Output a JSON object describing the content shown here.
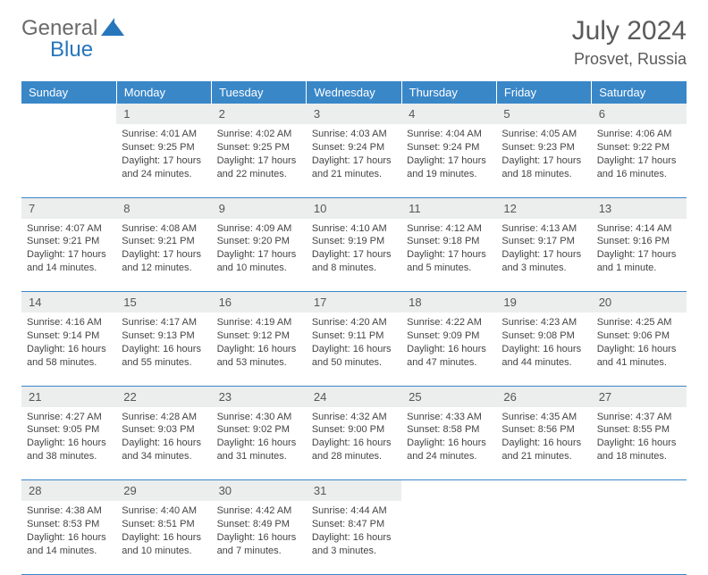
{
  "brand": {
    "name1": "General",
    "name2": "Blue"
  },
  "title": "July 2024",
  "location": "Prosvet, Russia",
  "dayHeaders": [
    "Sunday",
    "Monday",
    "Tuesday",
    "Wednesday",
    "Thursday",
    "Friday",
    "Saturday"
  ],
  "colors": {
    "headerBg": "#3a87c8",
    "headerText": "#ffffff",
    "dayBg": "#eceded",
    "border": "#3a87c8"
  },
  "weeks": [
    [
      null,
      {
        "n": "1",
        "sr": "4:01 AM",
        "ss": "9:25 PM",
        "dl": "17 hours and 24 minutes."
      },
      {
        "n": "2",
        "sr": "4:02 AM",
        "ss": "9:25 PM",
        "dl": "17 hours and 22 minutes."
      },
      {
        "n": "3",
        "sr": "4:03 AM",
        "ss": "9:24 PM",
        "dl": "17 hours and 21 minutes."
      },
      {
        "n": "4",
        "sr": "4:04 AM",
        "ss": "9:24 PM",
        "dl": "17 hours and 19 minutes."
      },
      {
        "n": "5",
        "sr": "4:05 AM",
        "ss": "9:23 PM",
        "dl": "17 hours and 18 minutes."
      },
      {
        "n": "6",
        "sr": "4:06 AM",
        "ss": "9:22 PM",
        "dl": "17 hours and 16 minutes."
      }
    ],
    [
      {
        "n": "7",
        "sr": "4:07 AM",
        "ss": "9:21 PM",
        "dl": "17 hours and 14 minutes."
      },
      {
        "n": "8",
        "sr": "4:08 AM",
        "ss": "9:21 PM",
        "dl": "17 hours and 12 minutes."
      },
      {
        "n": "9",
        "sr": "4:09 AM",
        "ss": "9:20 PM",
        "dl": "17 hours and 10 minutes."
      },
      {
        "n": "10",
        "sr": "4:10 AM",
        "ss": "9:19 PM",
        "dl": "17 hours and 8 minutes."
      },
      {
        "n": "11",
        "sr": "4:12 AM",
        "ss": "9:18 PM",
        "dl": "17 hours and 5 minutes."
      },
      {
        "n": "12",
        "sr": "4:13 AM",
        "ss": "9:17 PM",
        "dl": "17 hours and 3 minutes."
      },
      {
        "n": "13",
        "sr": "4:14 AM",
        "ss": "9:16 PM",
        "dl": "17 hours and 1 minute."
      }
    ],
    [
      {
        "n": "14",
        "sr": "4:16 AM",
        "ss": "9:14 PM",
        "dl": "16 hours and 58 minutes."
      },
      {
        "n": "15",
        "sr": "4:17 AM",
        "ss": "9:13 PM",
        "dl": "16 hours and 55 minutes."
      },
      {
        "n": "16",
        "sr": "4:19 AM",
        "ss": "9:12 PM",
        "dl": "16 hours and 53 minutes."
      },
      {
        "n": "17",
        "sr": "4:20 AM",
        "ss": "9:11 PM",
        "dl": "16 hours and 50 minutes."
      },
      {
        "n": "18",
        "sr": "4:22 AM",
        "ss": "9:09 PM",
        "dl": "16 hours and 47 minutes."
      },
      {
        "n": "19",
        "sr": "4:23 AM",
        "ss": "9:08 PM",
        "dl": "16 hours and 44 minutes."
      },
      {
        "n": "20",
        "sr": "4:25 AM",
        "ss": "9:06 PM",
        "dl": "16 hours and 41 minutes."
      }
    ],
    [
      {
        "n": "21",
        "sr": "4:27 AM",
        "ss": "9:05 PM",
        "dl": "16 hours and 38 minutes."
      },
      {
        "n": "22",
        "sr": "4:28 AM",
        "ss": "9:03 PM",
        "dl": "16 hours and 34 minutes."
      },
      {
        "n": "23",
        "sr": "4:30 AM",
        "ss": "9:02 PM",
        "dl": "16 hours and 31 minutes."
      },
      {
        "n": "24",
        "sr": "4:32 AM",
        "ss": "9:00 PM",
        "dl": "16 hours and 28 minutes."
      },
      {
        "n": "25",
        "sr": "4:33 AM",
        "ss": "8:58 PM",
        "dl": "16 hours and 24 minutes."
      },
      {
        "n": "26",
        "sr": "4:35 AM",
        "ss": "8:56 PM",
        "dl": "16 hours and 21 minutes."
      },
      {
        "n": "27",
        "sr": "4:37 AM",
        "ss": "8:55 PM",
        "dl": "16 hours and 18 minutes."
      }
    ],
    [
      {
        "n": "28",
        "sr": "4:38 AM",
        "ss": "8:53 PM",
        "dl": "16 hours and 14 minutes."
      },
      {
        "n": "29",
        "sr": "4:40 AM",
        "ss": "8:51 PM",
        "dl": "16 hours and 10 minutes."
      },
      {
        "n": "30",
        "sr": "4:42 AM",
        "ss": "8:49 PM",
        "dl": "16 hours and 7 minutes."
      },
      {
        "n": "31",
        "sr": "4:44 AM",
        "ss": "8:47 PM",
        "dl": "16 hours and 3 minutes."
      },
      null,
      null,
      null
    ]
  ],
  "labels": {
    "sunrise": "Sunrise:",
    "sunset": "Sunset:",
    "daylight": "Daylight:"
  }
}
